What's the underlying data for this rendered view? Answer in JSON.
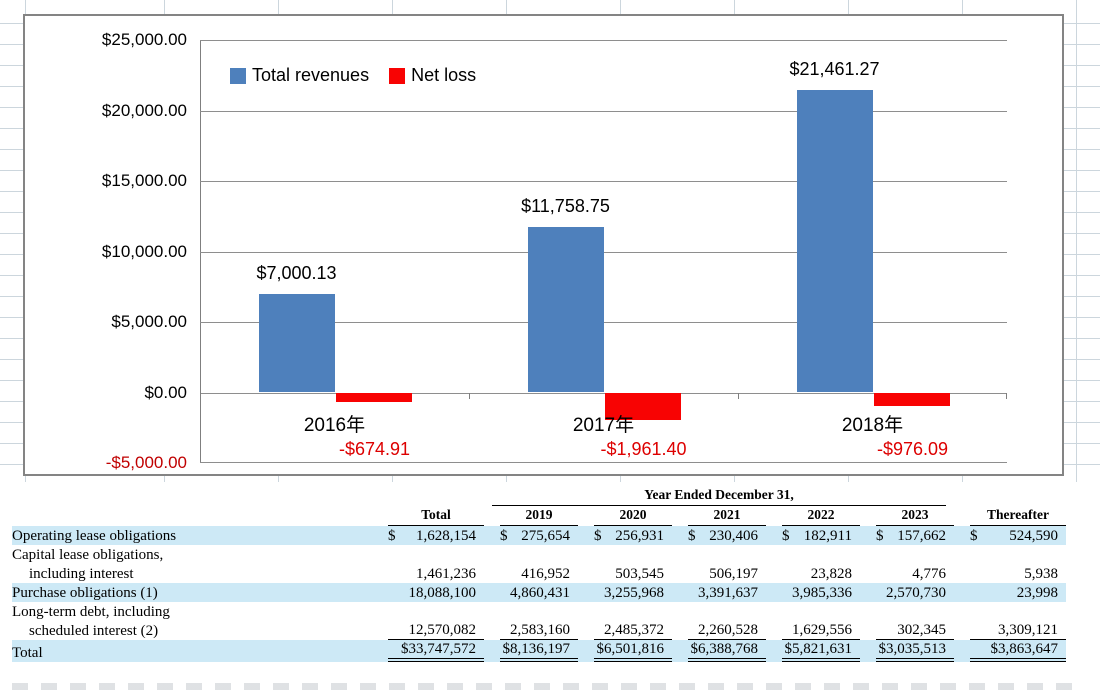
{
  "chart_data": {
    "type": "bar",
    "title": "",
    "categories": [
      "2016年",
      "2017年",
      "2018年"
    ],
    "series": [
      {
        "name": "Total revenues",
        "color": "#4e80bc",
        "values": [
          7000.13,
          11758.75,
          21461.27
        ],
        "data_labels": [
          "$7,000.13",
          "$11,758.75",
          "$21,461.27"
        ]
      },
      {
        "name": "Net loss",
        "color": "#f80303",
        "values": [
          -674.91,
          -1961.4,
          -976.09
        ],
        "data_labels": [
          "-$674.91",
          "-$1,961.40",
          "-$976.09"
        ]
      }
    ],
    "xlabel": "",
    "ylabel": "",
    "ylim": [
      -5000,
      25000
    ],
    "y_step": 5000,
    "y_axis_ticks": [
      "$25,000.00",
      "$20,000.00",
      "$15,000.00",
      "$10,000.00",
      "$5,000.00",
      "$0.00",
      "-$5,000.00"
    ],
    "grid": true,
    "legend_position": "top-inside"
  },
  "style": {
    "bar_blue": "#4e80bc",
    "bar_red": "#f80303",
    "negative_label_color": "#dd0000",
    "negative_axis_color": "#c00000",
    "gridline_color": "#8e8e8e",
    "table_band_color": "#cde9f6"
  },
  "table": {
    "group_header": "Year Ended December 31,",
    "columns": [
      "",
      "Total",
      "2019",
      "2020",
      "2021",
      "2022",
      "2023",
      "Thereafter"
    ],
    "rows": [
      {
        "label_lines": [
          "Operating lease obligations"
        ],
        "shaded": true,
        "dollar": "split",
        "underline": "none",
        "values": [
          "1,628,154",
          "275,654",
          "256,931",
          "230,406",
          "182,911",
          "157,662",
          "524,590"
        ]
      },
      {
        "label_lines": [
          "Capital lease obligations,",
          "including interest"
        ],
        "shaded": false,
        "dollar": "none",
        "underline": "none",
        "values": [
          "1,461,236",
          "416,952",
          "503,545",
          "506,197",
          "23,828",
          "4,776",
          "5,938"
        ]
      },
      {
        "label_lines": [
          "Purchase obligations (1)"
        ],
        "shaded": true,
        "dollar": "none",
        "underline": "none",
        "values": [
          "18,088,100",
          "4,860,431",
          "3,255,968",
          "3,391,637",
          "3,985,336",
          "2,570,730",
          "23,998"
        ]
      },
      {
        "label_lines": [
          "Long-term debt, including",
          "scheduled interest (2)"
        ],
        "shaded": false,
        "dollar": "none",
        "underline": "single",
        "values": [
          "12,570,082",
          "2,583,160",
          "2,485,372",
          "2,260,528",
          "1,629,556",
          "302,345",
          "3,309,121"
        ]
      },
      {
        "label_lines": [
          "Total"
        ],
        "shaded": true,
        "dollar": "tight",
        "underline": "double",
        "values": [
          "33,747,572",
          "8,136,197",
          "6,501,816",
          "6,388,768",
          "5,821,631",
          "3,035,513",
          "3,863,647"
        ]
      }
    ]
  }
}
